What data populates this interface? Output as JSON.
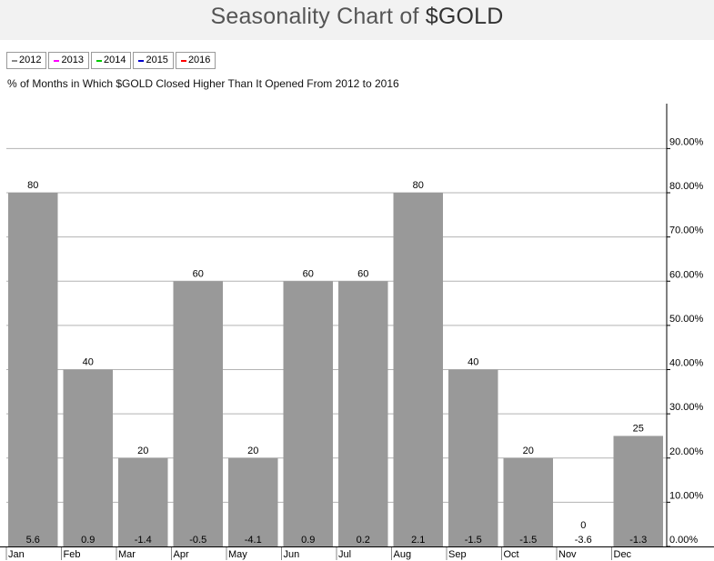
{
  "title": "Seasonality Chart of",
  "title_symbol": "$GOLD",
  "subtitle": "% of Months in Which $GOLD Closed Higher Than It Opened From 2012 to 2016",
  "legend": [
    {
      "label": "2012",
      "color": "#888888"
    },
    {
      "label": "2013",
      "color": "#ff00ff"
    },
    {
      "label": "2014",
      "color": "#00cc00"
    },
    {
      "label": "2015",
      "color": "#0000cc"
    },
    {
      "label": "2016",
      "color": "#ff0000"
    }
  ],
  "chart_data": {
    "type": "bar",
    "categories": [
      "Jan",
      "Feb",
      "Mar",
      "Apr",
      "May",
      "Jun",
      "Jul",
      "Aug",
      "Sep",
      "Oct",
      "Nov",
      "Dec"
    ],
    "values": [
      80,
      40,
      20,
      60,
      20,
      60,
      60,
      80,
      40,
      20,
      0,
      25
    ],
    "value_labels": [
      "80",
      "40",
      "20",
      "60",
      "20",
      "60",
      "60",
      "80",
      "40",
      "20",
      "0",
      "25"
    ],
    "bottom_labels": [
      "5.6",
      "0.9",
      "-1.4",
      "-0.5",
      "-4.1",
      "0.9",
      "0.2",
      "2.1",
      "-1.5",
      "-1.5",
      "-3.6",
      "-1.3"
    ],
    "ylim": [
      0,
      100
    ],
    "yticks": [
      0,
      10,
      20,
      30,
      40,
      50,
      60,
      70,
      80,
      90
    ],
    "ytick_labels": [
      "0.00%",
      "10.00%",
      "20.00%",
      "30.00%",
      "40.00%",
      "50.00%",
      "60.00%",
      "70.00%",
      "80.00%",
      "90.00%"
    ],
    "bar_color": "#999999",
    "grid": true,
    "axis_position": "right"
  }
}
